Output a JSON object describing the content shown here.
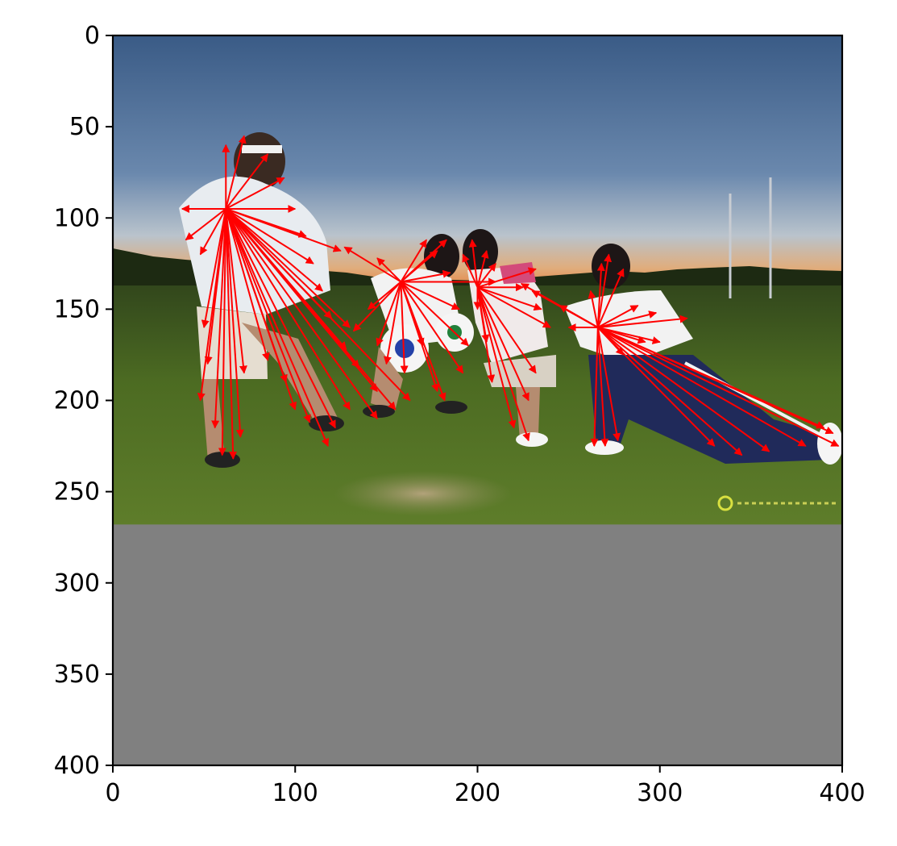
{
  "chart_data": {
    "type": "scatter",
    "subtype": "keypoint-offset-vectors over photo",
    "title": "",
    "xlabel": "",
    "ylabel": "",
    "xlim": [
      0,
      400
    ],
    "ylim": [
      400,
      0
    ],
    "x_ticks": [
      0,
      100,
      200,
      300,
      400
    ],
    "y_ticks": [
      0,
      50,
      100,
      150,
      200,
      250,
      300,
      350,
      400
    ],
    "grid": false,
    "legend": "none",
    "image_extent": {
      "x": [
        0,
        400
      ],
      "y": [
        0,
        268
      ]
    },
    "padding_extent": {
      "x": [
        0,
        400
      ],
      "y": [
        268,
        400
      ]
    },
    "padding_color": "#808080",
    "arrow_color": "#ff0000",
    "arrow_groups": [
      {
        "name": "",
        "origin": [
          62,
          95
        ],
        "targets": [
          [
            38,
            95
          ],
          [
            40,
            112
          ],
          [
            48,
            120
          ],
          [
            62,
            60
          ],
          [
            72,
            55
          ],
          [
            85,
            65
          ],
          [
            94,
            78
          ],
          [
            100,
            95
          ],
          [
            106,
            110
          ],
          [
            110,
            125
          ],
          [
            115,
            140
          ],
          [
            120,
            155
          ],
          [
            128,
            172
          ],
          [
            135,
            182
          ],
          [
            145,
            195
          ],
          [
            155,
            205
          ],
          [
            163,
            200
          ],
          [
            145,
            210
          ],
          [
            130,
            205
          ],
          [
            122,
            215
          ],
          [
            118,
            225
          ],
          [
            108,
            212
          ],
          [
            100,
            205
          ],
          [
            95,
            190
          ],
          [
            85,
            178
          ],
          [
            72,
            185
          ],
          [
            70,
            220
          ],
          [
            66,
            232
          ],
          [
            60,
            230
          ],
          [
            56,
            215
          ],
          [
            48,
            200
          ],
          [
            52,
            180
          ],
          [
            50,
            160
          ],
          [
            125,
            118
          ],
          [
            130,
            160
          ]
        ]
      },
      {
        "name": "",
        "origin": [
          158,
          135
        ],
        "targets": [
          [
            127,
            116
          ],
          [
            145,
            122
          ],
          [
            140,
            150
          ],
          [
            132,
            162
          ],
          [
            145,
            170
          ],
          [
            150,
            180
          ],
          [
            160,
            185
          ],
          [
            170,
            170
          ],
          [
            178,
            195
          ],
          [
            182,
            200
          ],
          [
            192,
            185
          ],
          [
            195,
            170
          ],
          [
            190,
            150
          ],
          [
            185,
            130
          ],
          [
            178,
            118
          ],
          [
            172,
            112
          ],
          [
            183,
            112
          ],
          [
            210,
            135
          ]
        ]
      },
      {
        "name": "",
        "origin": [
          200,
          138
        ],
        "targets": [
          [
            192,
            120
          ],
          [
            197,
            112
          ],
          [
            205,
            118
          ],
          [
            210,
            125
          ],
          [
            225,
            138
          ],
          [
            235,
            150
          ],
          [
            240,
            160
          ],
          [
            232,
            185
          ],
          [
            228,
            200
          ],
          [
            228,
            222
          ],
          [
            220,
            215
          ],
          [
            208,
            190
          ],
          [
            205,
            168
          ],
          [
            200,
            150
          ],
          [
            232,
            128
          ]
        ]
      },
      {
        "name": "",
        "origin": [
          266,
          160
        ],
        "targets": [
          [
            262,
            140
          ],
          [
            268,
            125
          ],
          [
            272,
            120
          ],
          [
            280,
            128
          ],
          [
            288,
            148
          ],
          [
            298,
            152
          ],
          [
            315,
            155
          ],
          [
            300,
            168
          ],
          [
            292,
            168
          ],
          [
            280,
            175
          ],
          [
            250,
            160
          ],
          [
            245,
            148
          ],
          [
            230,
            140
          ],
          [
            224,
            136
          ],
          [
            270,
            225
          ],
          [
            264,
            225
          ],
          [
            277,
            222
          ],
          [
            330,
            225
          ],
          [
            345,
            230
          ],
          [
            360,
            228
          ],
          [
            380,
            225
          ],
          [
            395,
            218
          ],
          [
            398,
            225
          ],
          [
            390,
            215
          ]
        ]
      }
    ]
  }
}
